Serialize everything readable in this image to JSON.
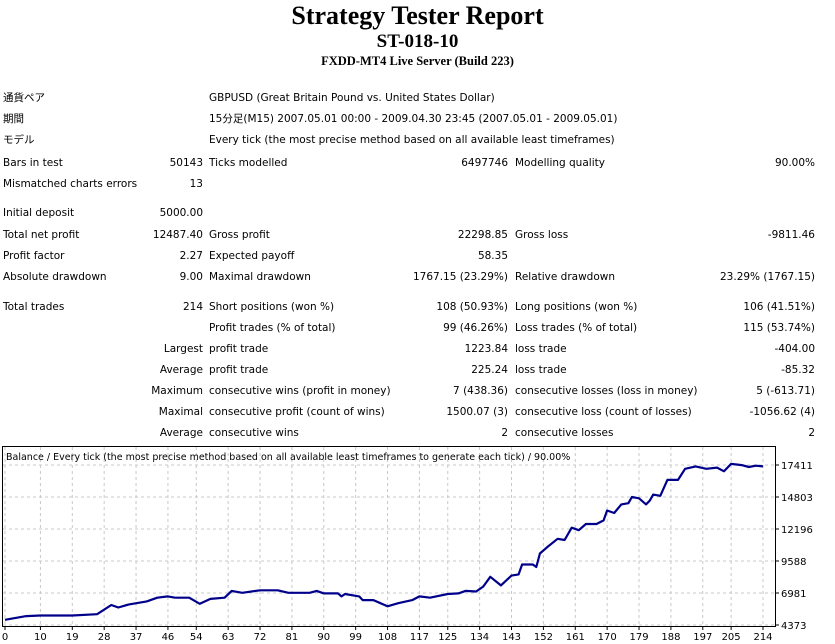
{
  "header": {
    "title": "Strategy Tester Report",
    "subtitle": "ST-018-10",
    "server": "FXDD-MT4 Live Server (Build 223)"
  },
  "report": {
    "rows": [
      [
        "通貨ペア",
        "",
        "GBPUSD (Great Britain Pound vs. United States Dollar)",
        "",
        "",
        ""
      ],
      [
        "期間",
        "",
        "15分足(M15) 2007.05.01 00:00 - 2009.04.30 23:45 (2007.05.01 - 2009.05.01)",
        "",
        "",
        ""
      ],
      [
        "モデル",
        "",
        "Every tick (the most precise method based on all available least timeframes)",
        "",
        "",
        ""
      ],
      [
        "Bars in test",
        "50143",
        "Ticks modelled",
        "6497746",
        "Modelling quality",
        "90.00%"
      ],
      [
        "Mismatched charts errors",
        "13",
        "",
        "",
        "",
        ""
      ],
      [
        "Initial deposit",
        "5000.00",
        "",
        "",
        "",
        ""
      ],
      [
        "Total net profit",
        "12487.40",
        "Gross profit",
        "22298.85",
        "Gross loss",
        "-9811.46"
      ],
      [
        "Profit factor",
        "2.27",
        "Expected payoff",
        "58.35",
        "",
        ""
      ],
      [
        "Absolute drawdown",
        "9.00",
        "Maximal drawdown",
        "1767.15 (23.29%)",
        "Relative drawdown",
        "23.29% (1767.15)"
      ],
      [
        "Total trades",
        "214",
        "Short positions (won %)",
        "108 (50.93%)",
        "Long positions (won %)",
        "106 (41.51%)"
      ],
      [
        "",
        "",
        "Profit trades (% of total)",
        "99 (46.26%)",
        "Loss trades (% of total)",
        "115 (53.74%)"
      ],
      [
        "",
        "Largest",
        "profit trade",
        "1223.84",
        "loss trade",
        "-404.00"
      ],
      [
        "",
        "Average",
        "profit trade",
        "225.24",
        "loss trade",
        "-85.32"
      ],
      [
        "",
        "Maximum",
        "consecutive wins (profit in money)",
        "7 (438.36)",
        "consecutive losses (loss in money)",
        "5 (-613.71)"
      ],
      [
        "",
        "Maximal",
        "consecutive profit (count of wins)",
        "1500.07 (3)",
        "consecutive loss (count of losses)",
        "-1056.62 (4)"
      ],
      [
        "",
        "Average",
        "consecutive wins",
        "2",
        "consecutive losses",
        "2"
      ]
    ]
  },
  "chart": {
    "title": "Balance / Every tick (the most precise method based on all available least timeframes to generate each tick) / 90.00%",
    "line_color": "#00008b",
    "grid_color": "#c8c8c8",
    "x_ticks": [
      0,
      10,
      19,
      28,
      37,
      46,
      54,
      63,
      72,
      81,
      90,
      99,
      108,
      117,
      125,
      134,
      143,
      152,
      161,
      170,
      179,
      188,
      197,
      205,
      214
    ],
    "y_ticks": [
      4373,
      6981,
      9588,
      12196,
      14803,
      17411
    ],
    "xlim": [
      0,
      214
    ],
    "ylim": [
      4373,
      17411
    ],
    "balance": [
      [
        0,
        4800
      ],
      [
        3,
        4950
      ],
      [
        6,
        5100
      ],
      [
        10,
        5150
      ],
      [
        19,
        5150
      ],
      [
        26,
        5250
      ],
      [
        30,
        6000
      ],
      [
        32,
        5800
      ],
      [
        35,
        6050
      ],
      [
        40,
        6300
      ],
      [
        43,
        6600
      ],
      [
        46,
        6700
      ],
      [
        48,
        6600
      ],
      [
        52,
        6600
      ],
      [
        55,
        6100
      ],
      [
        58,
        6500
      ],
      [
        62,
        6600
      ],
      [
        64,
        7150
      ],
      [
        67,
        7000
      ],
      [
        72,
        7200
      ],
      [
        77,
        7200
      ],
      [
        80,
        7000
      ],
      [
        86,
        7000
      ],
      [
        88,
        7150
      ],
      [
        90,
        6950
      ],
      [
        94,
        6950
      ],
      [
        95,
        6700
      ],
      [
        96,
        6900
      ],
      [
        100,
        6700
      ],
      [
        101,
        6400
      ],
      [
        104,
        6400
      ],
      [
        108,
        5900
      ],
      [
        111,
        6150
      ],
      [
        115,
        6400
      ],
      [
        117,
        6700
      ],
      [
        120,
        6600
      ],
      [
        125,
        6900
      ],
      [
        128,
        6950
      ],
      [
        130,
        7150
      ],
      [
        133,
        7100
      ],
      [
        135,
        7500
      ],
      [
        137,
        8300
      ],
      [
        140,
        7600
      ],
      [
        143,
        8400
      ],
      [
        145,
        8500
      ],
      [
        146,
        9300
      ],
      [
        149,
        9300
      ],
      [
        150,
        9100
      ],
      [
        151,
        10200
      ],
      [
        153,
        10700
      ],
      [
        156,
        11400
      ],
      [
        158,
        11300
      ],
      [
        160,
        12300
      ],
      [
        162,
        12100
      ],
      [
        164,
        12600
      ],
      [
        167,
        12600
      ],
      [
        169,
        12900
      ],
      [
        170,
        13700
      ],
      [
        172,
        13500
      ],
      [
        174,
        14200
      ],
      [
        176,
        14300
      ],
      [
        177,
        14800
      ],
      [
        179,
        14700
      ],
      [
        181,
        14200
      ],
      [
        182,
        14500
      ],
      [
        183,
        15000
      ],
      [
        185,
        14900
      ],
      [
        187,
        16200
      ],
      [
        190,
        16200
      ],
      [
        192,
        17100
      ],
      [
        195,
        17300
      ],
      [
        198,
        17100
      ],
      [
        201,
        17200
      ],
      [
        203,
        16900
      ],
      [
        205,
        17500
      ],
      [
        208,
        17400
      ],
      [
        210,
        17250
      ],
      [
        212,
        17350
      ],
      [
        214,
        17300
      ]
    ]
  }
}
